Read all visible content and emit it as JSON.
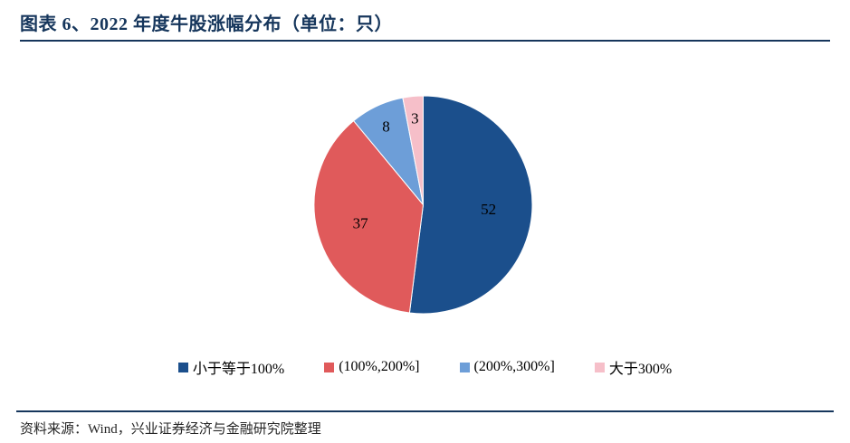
{
  "title": "图表 6、2022 年度牛股涨幅分布（单位：只）",
  "source": "资料来源：Wind，兴业证券经济与金融研究院整理",
  "colors": {
    "accent": "#16365C",
    "rule": "#16365C",
    "label_text": "#000000"
  },
  "chart_data": {
    "type": "pie",
    "title": "2022 年度牛股涨幅分布",
    "unit": "只",
    "start_angle_deg": 0,
    "direction": "clockwise",
    "legend_position": "bottom",
    "total": 100,
    "slices": [
      {
        "label": "小于等于100%",
        "value": 52,
        "color": "#1B4F8C"
      },
      {
        "label": "(100%,200%]",
        "value": 37,
        "color": "#E05A5B"
      },
      {
        "label": "(200%,300%]",
        "value": 8,
        "color": "#6D9ED8"
      },
      {
        "label": "大于300%",
        "value": 3,
        "color": "#F6BFC9"
      }
    ]
  }
}
